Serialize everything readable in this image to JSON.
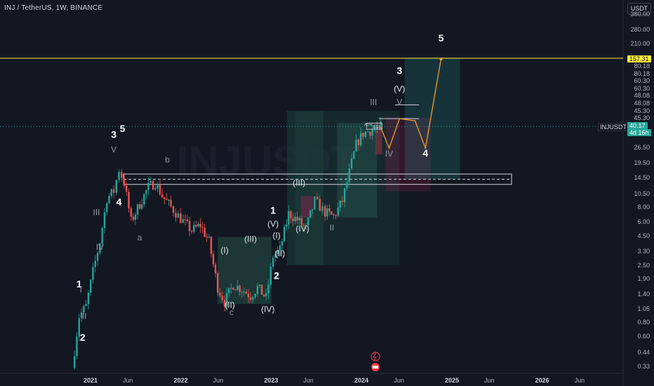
{
  "header": {
    "symbol": "INJ / TetherUS, 1W, BINANCE",
    "currency": "USDT"
  },
  "watermark": {
    "symbol": "INJUSDT"
  },
  "ticker_label": "INJUSDT",
  "colors": {
    "background": "#131722",
    "up": "#26a69a",
    "down": "#ef5350",
    "zone": "#1f4b45",
    "resistance": "#ffeb3b",
    "projection": "#f0a030",
    "price_tag": "#26a69a"
  },
  "yaxis": {
    "labels": [
      "USDT",
      "380.00",
      "280.00",
      "210.00",
      "157.31",
      "80.18",
      "80.18",
      "60.30",
      "60.30",
      "48.08",
      "48.08",
      "45.30",
      "45.30",
      "40.17",
      "4d 16h",
      "26.50",
      "19.50",
      "14.50",
      "10.50",
      "8.00",
      "6.00",
      "4.50",
      "3.30",
      "2.50",
      "1.90",
      "1.40",
      "1.05",
      "0.80",
      "0.60",
      "0.44",
      "0.33"
    ]
  },
  "xaxis": {
    "labels": [
      "2021",
      "Jun",
      "2022",
      "Jun",
      "2023",
      "Jun",
      "2024",
      "Jun",
      "2025",
      "Jun",
      "2026",
      "Jun"
    ]
  },
  "current_price": "40.17",
  "countdown": "4d 16h",
  "resistance_price": "157.31",
  "chart_data": {
    "type": "line",
    "title": "INJ / TetherUS, 1W, BINANCE",
    "xlabel": "",
    "ylabel": "USDT",
    "scale": "log",
    "ylim": [
      0.3,
      380
    ],
    "series": [
      {
        "x": [
          "2020-10-19",
          "2020-11-16",
          "2020-12-14",
          "2021-01-11",
          "2021-02-08",
          "2021-03-08",
          "2021-04-05",
          "2021-04-26",
          "2021-05-17",
          "2021-06-14",
          "2021-07-19",
          "2021-08-23",
          "2021-09-20",
          "2021-10-18",
          "2021-11-22",
          "2022-01-10",
          "2022-02-14",
          "2022-03-21",
          "2022-04-25",
          "2022-05-30",
          "2022-06-27",
          "2022-08-01",
          "2022-09-05",
          "2022-10-10",
          "2022-11-07",
          "2022-12-12",
          "2023-01-09",
          "2023-02-06",
          "2023-03-13",
          "2023-04-17",
          "2023-05-22",
          "2023-06-26",
          "2023-08-07",
          "2023-09-11",
          "2023-10-16",
          "2023-11-13",
          "2023-12-11",
          "2024-01-08",
          "2024-02-05",
          "2024-03-04",
          "2024-03-18"
        ],
        "values": [
          0.32,
          0.9,
          1.1,
          2.2,
          4.0,
          9.5,
          11,
          17,
          13,
          6,
          8.5,
          12,
          13,
          10,
          8,
          6,
          5,
          5.6,
          4.0,
          1.6,
          1.2,
          1.7,
          1.55,
          1.35,
          1.6,
          1.3,
          3.0,
          3.4,
          7.0,
          6.2,
          5.2,
          9.0,
          7.2,
          6.6,
          9.0,
          16,
          28,
          35,
          37,
          39,
          40.17
        ]
      }
    ],
    "projection": {
      "x": [
        "2024-03-18",
        "2024-04-22",
        "2024-06-03",
        "2024-08-05",
        "2024-09-16",
        "2024-11-18"
      ],
      "values": [
        40.17,
        26,
        47,
        45,
        26,
        155
      ]
    },
    "resistance_level": 157.31,
    "support_zone": [
      12.6,
      15.5
    ],
    "labels": [
      {
        "text": "1",
        "x": "2020-11-16",
        "y": 1.6,
        "kind": "major"
      },
      {
        "text": "2",
        "x": "2020-11-30",
        "y": 0.55,
        "kind": "major"
      },
      {
        "text": "3",
        "x": "2021-04-05",
        "y": 32,
        "kind": "major"
      },
      {
        "text": "4",
        "x": "2021-04-26",
        "y": 8.3,
        "kind": "major"
      },
      {
        "text": "5",
        "x": "2021-05-10",
        "y": 36,
        "kind": "major"
      },
      {
        "text": "I",
        "x": "2020-11-23",
        "y": 1.45,
        "kind": "minor"
      },
      {
        "text": "II",
        "x": "2020-12-07",
        "y": 0.85,
        "kind": "minor"
      },
      {
        "text": "III",
        "x": "2021-01-25",
        "y": 6.8,
        "kind": "minor"
      },
      {
        "text": "IV",
        "x": "2021-02-08",
        "y": 3.4,
        "kind": "minor"
      },
      {
        "text": "V",
        "x": "2021-04-05",
        "y": 24,
        "kind": "minor"
      },
      {
        "text": "a",
        "x": "2021-07-19",
        "y": 4.1,
        "kind": "minor"
      },
      {
        "text": "b",
        "x": "2021-11-08",
        "y": 19.5,
        "kind": "minor"
      },
      {
        "text": "c",
        "x": "2022-07-25",
        "y": 0.92,
        "kind": "minor"
      },
      {
        "text": "1",
        "x": "2023-01-09",
        "y": 7.0,
        "kind": "major"
      },
      {
        "text": "2",
        "x": "2023-01-23",
        "y": 1.9,
        "kind": "major"
      },
      {
        "text": "(I)",
        "x": "2022-06-27",
        "y": 3.2,
        "kind": "wave"
      },
      {
        "text": "(II)",
        "x": "2022-07-18",
        "y": 1.07,
        "kind": "wave"
      },
      {
        "text": "(III)",
        "x": "2022-10-10",
        "y": 4.0,
        "kind": "wave"
      },
      {
        "text": "(IV)",
        "x": "2022-12-19",
        "y": 0.98,
        "kind": "wave"
      },
      {
        "text": "(V)",
        "x": "2023-01-09",
        "y": 5.4,
        "kind": "wave"
      },
      {
        "text": "(I)",
        "x": "2023-01-23",
        "y": 4.3,
        "kind": "wave"
      },
      {
        "text": "(II)",
        "x": "2023-02-06",
        "y": 3.0,
        "kind": "wave"
      },
      {
        "text": "(III)",
        "x": "2023-04-24",
        "y": 12.3,
        "kind": "wave"
      },
      {
        "text": "(IV)",
        "x": "2023-05-08",
        "y": 4.9,
        "kind": "wave"
      },
      {
        "text": "II",
        "x": "2023-09-04",
        "y": 5.0,
        "kind": "minor"
      },
      {
        "text": "III",
        "x": "2024-02-19",
        "y": 62,
        "kind": "minor"
      },
      {
        "text": "IV",
        "x": "2024-04-22",
        "y": 22,
        "kind": "minor"
      },
      {
        "text": "3",
        "x": "2024-06-03",
        "y": 115,
        "kind": "major"
      },
      {
        "text": "(V)",
        "x": "2024-06-03",
        "y": 81,
        "kind": "wave"
      },
      {
        "text": "V",
        "x": "2024-06-03",
        "y": 62,
        "kind": "minor"
      },
      {
        "text": "4",
        "x": "2024-09-16",
        "y": 22,
        "kind": "major"
      },
      {
        "text": "5",
        "x": "2024-11-18",
        "y": 220,
        "kind": "major"
      },
      {
        "text": "ATH",
        "x": "2024-01-29",
        "y": 40.5,
        "kind": "tiny"
      },
      {
        "text": "BSL",
        "x": "2024-03-04",
        "y": 38.5,
        "kind": "tiny"
      }
    ]
  }
}
